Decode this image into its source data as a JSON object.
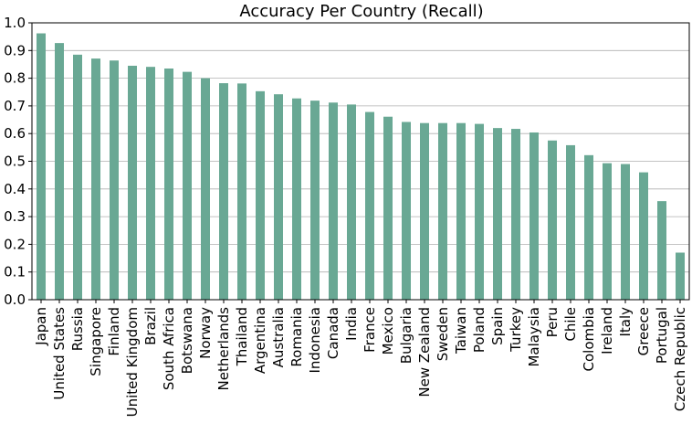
{
  "chart_data": {
    "type": "bar",
    "title": "Accuracy Per Country (Recall)",
    "xlabel": "",
    "ylabel": "",
    "ylim": [
      0,
      1.0
    ],
    "yticks": [
      "0.0",
      "0.1",
      "0.2",
      "0.3",
      "0.4",
      "0.5",
      "0.6",
      "0.7",
      "0.8",
      "0.9",
      "1.0"
    ],
    "grid": "horizontal",
    "bar_color": "#69a894",
    "categories": [
      "Japan",
      "United States",
      "Russia",
      "Singapore",
      "Finland",
      "United Kingdom",
      "Brazil",
      "South Africa",
      "Botswana",
      "Norway",
      "Netherlands",
      "Thailand",
      "Argentina",
      "Australia",
      "Romania",
      "Indonesia",
      "Canada",
      "India",
      "France",
      "Mexico",
      "Bulgaria",
      "New Zealand",
      "Sweden",
      "Taiwan",
      "Poland",
      "Spain",
      "Turkey",
      "Malaysia",
      "Peru",
      "Chile",
      "Colombia",
      "Ireland",
      "Italy",
      "Greece",
      "Portugal",
      "Czech Republic"
    ],
    "values": [
      0.962,
      0.927,
      0.885,
      0.871,
      0.864,
      0.845,
      0.841,
      0.835,
      0.823,
      0.8,
      0.782,
      0.781,
      0.753,
      0.742,
      0.727,
      0.719,
      0.712,
      0.705,
      0.678,
      0.661,
      0.642,
      0.638,
      0.638,
      0.638,
      0.635,
      0.62,
      0.617,
      0.604,
      0.575,
      0.558,
      0.522,
      0.493,
      0.49,
      0.46,
      0.356,
      0.17
    ]
  }
}
